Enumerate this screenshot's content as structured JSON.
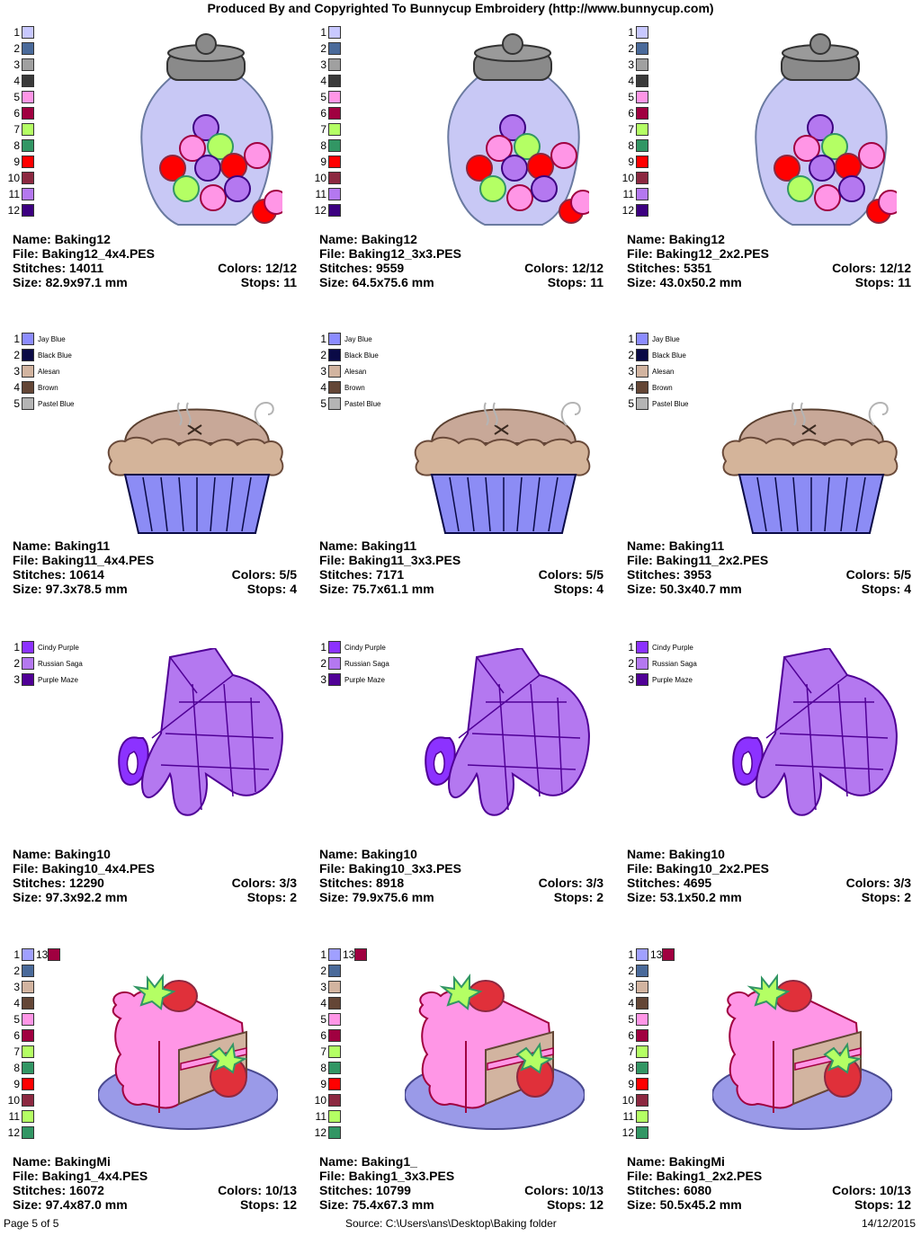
{
  "header": "Produced By and Copyrighted To Bunnycup Embroidery (http://www.bunnycup.com)",
  "labels": {
    "name": "Name:",
    "file": "File:",
    "stitches": "Stitches:",
    "size": "Size:",
    "colors": "Colors:",
    "stops": "Stops:"
  },
  "palettes": {
    "jar": [
      {
        "n": "1",
        "color": "#C8C8FF"
      },
      {
        "n": "2",
        "color": "#4A6A9A"
      },
      {
        "n": "3",
        "color": "#A0A0A0"
      },
      {
        "n": "4",
        "color": "#3A3A3A"
      },
      {
        "n": "5",
        "color": "#FF96E6"
      },
      {
        "n": "6",
        "color": "#A00040"
      },
      {
        "n": "7",
        "color": "#B4FF64"
      },
      {
        "n": "8",
        "color": "#329664"
      },
      {
        "n": "9",
        "color": "#FF0000"
      },
      {
        "n": "10",
        "color": "#8C2840"
      },
      {
        "n": "11",
        "color": "#B478F0"
      },
      {
        "n": "12",
        "color": "#3C0080"
      }
    ],
    "pie": [
      {
        "n": "1",
        "color": "#8C8CFF",
        "name": "Jay Blue"
      },
      {
        "n": "2",
        "color": "#0A0A46",
        "name": "Black Blue"
      },
      {
        "n": "3",
        "color": "#D2B4A0",
        "name": "Alesan"
      },
      {
        "n": "4",
        "color": "#644636",
        "name": "Brown"
      },
      {
        "n": "5",
        "color": "#B4B4B4",
        "name": "Pastel Blue"
      }
    ],
    "mitt": [
      {
        "n": "1",
        "color": "#8C32FF",
        "name": "Cindy Purple"
      },
      {
        "n": "2",
        "color": "#B478F0",
        "name": "Russian Saga"
      },
      {
        "n": "3",
        "color": "#500096",
        "name": "Purple Maze"
      }
    ],
    "cake": [
      {
        "n": "1",
        "color": "#A0A0FF",
        "extra": "13",
        "extra_color": "#A00040"
      },
      {
        "n": "2",
        "color": "#4A6A9A"
      },
      {
        "n": "3",
        "color": "#D2B4A0"
      },
      {
        "n": "4",
        "color": "#644636"
      },
      {
        "n": "5",
        "color": "#FF96E6"
      },
      {
        "n": "6",
        "color": "#A00040"
      },
      {
        "n": "7",
        "color": "#B4FF64"
      },
      {
        "n": "8",
        "color": "#329664"
      },
      {
        "n": "9",
        "color": "#FF0000"
      },
      {
        "n": "10",
        "color": "#8C2840"
      },
      {
        "n": "11",
        "color": "#B4FF64"
      },
      {
        "n": "12",
        "color": "#329664"
      }
    ]
  },
  "designs": [
    {
      "palette": "jar",
      "art": "jar",
      "name": "Baking12",
      "file": "Baking12_4x4.PES",
      "stitches": "14011",
      "size": "82.9x97.1 mm",
      "colors": "12/12",
      "stops": "11"
    },
    {
      "palette": "jar",
      "art": "jar",
      "name": "Baking12",
      "file": "Baking12_3x3.PES",
      "stitches": "9559",
      "size": "64.5x75.6 mm",
      "colors": "12/12",
      "stops": "11"
    },
    {
      "palette": "jar",
      "art": "jar",
      "name": "Baking12",
      "file": "Baking12_2x2.PES",
      "stitches": "5351",
      "size": "43.0x50.2 mm",
      "colors": "12/12",
      "stops": "11"
    },
    {
      "palette": "pie",
      "art": "pie",
      "name": "Baking11",
      "file": "Baking11_4x4.PES",
      "stitches": "10614",
      "size": "97.3x78.5 mm",
      "colors": "5/5",
      "stops": "4"
    },
    {
      "palette": "pie",
      "art": "pie",
      "name": "Baking11",
      "file": "Baking11_3x3.PES",
      "stitches": "7171",
      "size": "75.7x61.1 mm",
      "colors": "5/5",
      "stops": "4"
    },
    {
      "palette": "pie",
      "art": "pie",
      "name": "Baking11",
      "file": "Baking11_2x2.PES",
      "stitches": "3953",
      "size": "50.3x40.7 mm",
      "colors": "5/5",
      "stops": "4"
    },
    {
      "palette": "mitt",
      "art": "mitt",
      "name": "Baking10",
      "file": "Baking10_4x4.PES",
      "stitches": "12290",
      "size": "97.3x92.2 mm",
      "colors": "3/3",
      "stops": "2"
    },
    {
      "palette": "mitt",
      "art": "mitt",
      "name": "Baking10",
      "file": "Baking10_3x3.PES",
      "stitches": "8918",
      "size": "79.9x75.6 mm",
      "colors": "3/3",
      "stops": "2"
    },
    {
      "palette": "mitt",
      "art": "mitt",
      "name": "Baking10",
      "file": "Baking10_2x2.PES",
      "stitches": "4695",
      "size": "53.1x50.2 mm",
      "colors": "3/3",
      "stops": "2"
    },
    {
      "palette": "cake",
      "art": "cake",
      "name": "BakingMi",
      "file": "Baking1_4x4.PES",
      "stitches": "16072",
      "size": "97.4x87.0 mm",
      "colors": "10/13",
      "stops": "12"
    },
    {
      "palette": "cake",
      "art": "cake",
      "name": "Baking1_",
      "file": "Baking1_3x3.PES",
      "stitches": "10799",
      "size": "75.4x67.3 mm",
      "colors": "10/13",
      "stops": "12"
    },
    {
      "palette": "cake",
      "art": "cake",
      "name": "BakingMi",
      "file": "Baking1_2x2.PES",
      "stitches": "6080",
      "size": "50.5x45.2 mm",
      "colors": "10/13",
      "stops": "12"
    }
  ],
  "footer": {
    "page": "Page 5 of 5",
    "source": "Source: C:\\Users\\ans\\Desktop\\Baking folder",
    "date": "14/12/2015"
  }
}
